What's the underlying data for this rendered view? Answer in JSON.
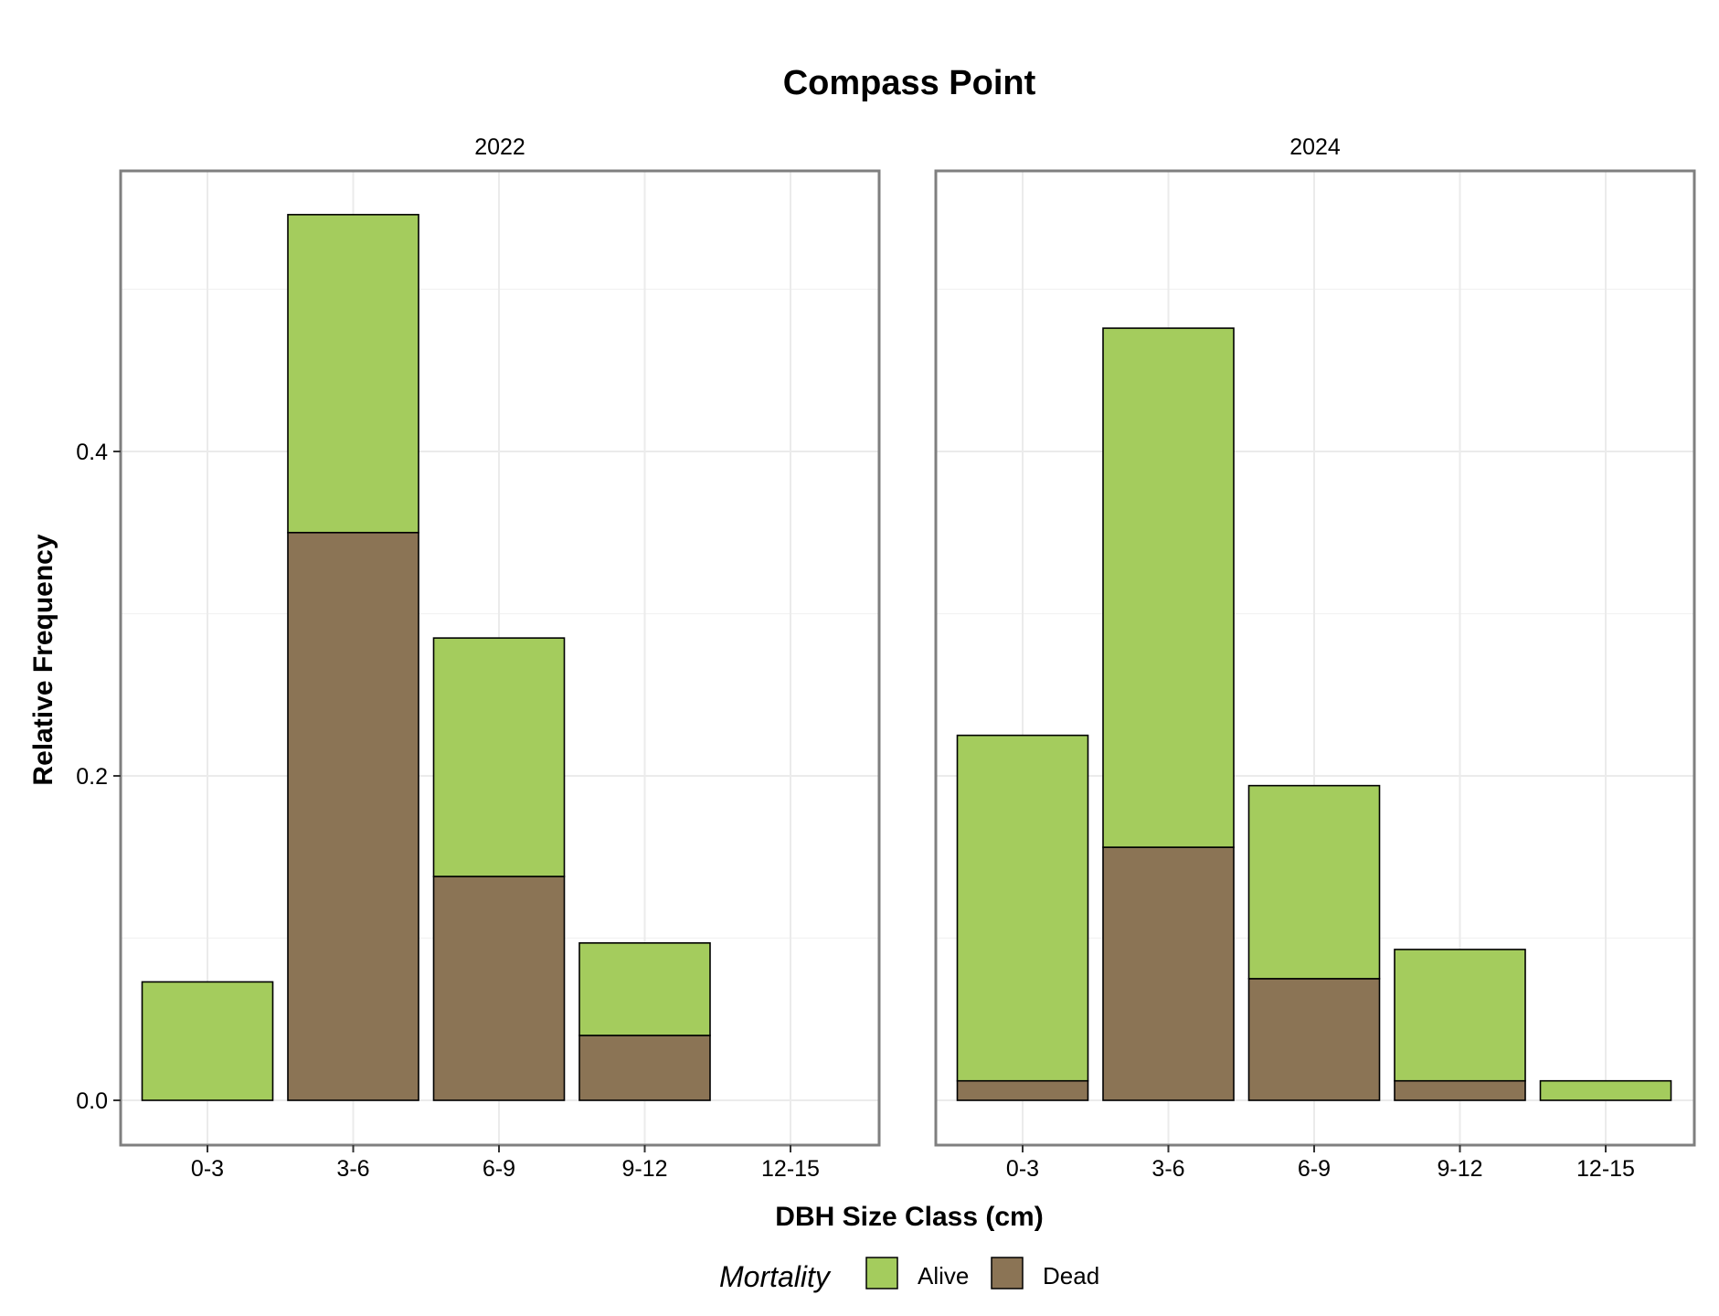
{
  "chart_data": {
    "type": "bar",
    "stacked": true,
    "title": "Compass Point",
    "xlabel": "DBH Size Class (cm)",
    "ylabel": "Relative Frequency",
    "ylim": [
      -0.028,
      0.57
    ],
    "yticks": [
      0.0,
      0.2,
      0.4
    ],
    "ytick_labels": [
      "0.0",
      "0.2",
      "0.4"
    ],
    "categories": [
      "0-3",
      "3-6",
      "6-9",
      "9-12",
      "12-15"
    ],
    "grid": true,
    "legend": {
      "title": "Mortality",
      "position": "bottom",
      "entries": [
        {
          "label": "Alive",
          "color": "#a4cc5d"
        },
        {
          "label": "Dead",
          "color": "#8b7455"
        }
      ]
    },
    "panels": [
      {
        "label": "2022",
        "series": [
          {
            "name": "Dead",
            "values": [
              0.0,
              0.35,
              0.138,
              0.04,
              0.0
            ]
          },
          {
            "name": "Alive",
            "values": [
              0.073,
              0.196,
              0.147,
              0.057,
              0.0
            ]
          }
        ]
      },
      {
        "label": "2024",
        "series": [
          {
            "name": "Dead",
            "values": [
              0.012,
              0.156,
              0.075,
              0.012,
              0.0
            ]
          },
          {
            "name": "Alive",
            "values": [
              0.213,
              0.32,
              0.119,
              0.081,
              0.012
            ]
          }
        ]
      }
    ]
  }
}
